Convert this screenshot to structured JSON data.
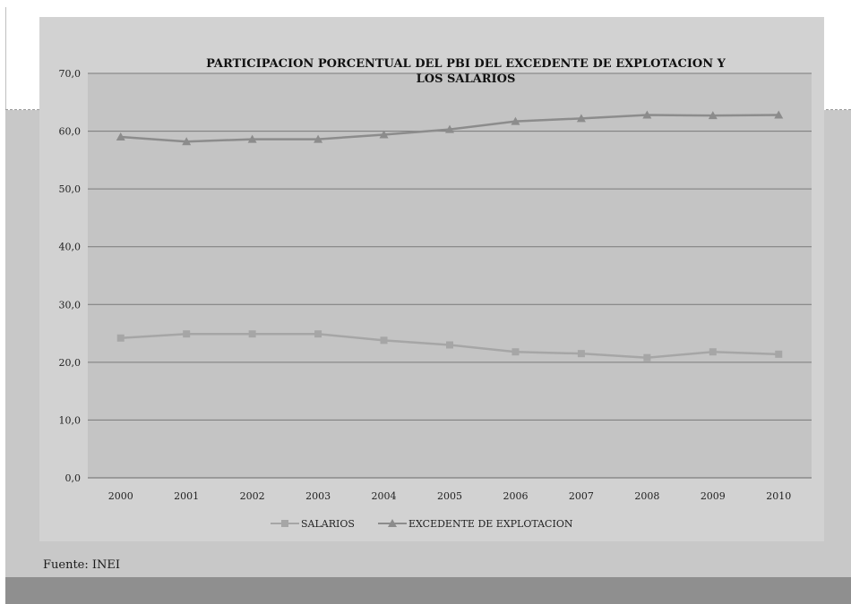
{
  "slide": {
    "source_note": "Fuente: INEI"
  },
  "chart_data": {
    "type": "line",
    "title_lines": [
      "PARTICIPACION PORCENTUAL DEL PBI DEL EXCEDENTE DE EXPLOTACION Y",
      "LOS SALARIOS"
    ],
    "categories": [
      "2000",
      "2001",
      "2002",
      "2003",
      "2004",
      "2005",
      "2006",
      "2007",
      "2008",
      "2009",
      "2010"
    ],
    "series": [
      {
        "name": "SALARIOS",
        "marker": "square",
        "color": "#a6a6a6",
        "values": [
          24.2,
          24.9,
          24.9,
          24.9,
          23.8,
          23.0,
          21.8,
          21.5,
          20.8,
          21.8,
          21.4
        ]
      },
      {
        "name": "EXCEDENTE DE  EXPLOTACION",
        "marker": "triangle",
        "color": "#8c8c8c",
        "values": [
          59.0,
          58.2,
          58.6,
          58.6,
          59.4,
          60.3,
          61.7,
          62.2,
          62.8,
          62.7,
          62.8
        ]
      }
    ],
    "y_ticks": [
      "0,0",
      "10,0",
      "20,0",
      "30,0",
      "40,0",
      "50,0",
      "60,0",
      "70,0"
    ],
    "ylim": [
      0,
      70
    ],
    "grid": true,
    "legend_position": "bottom",
    "plot_background": "#c4c4c4",
    "chart_background": "#d2d2d2"
  }
}
